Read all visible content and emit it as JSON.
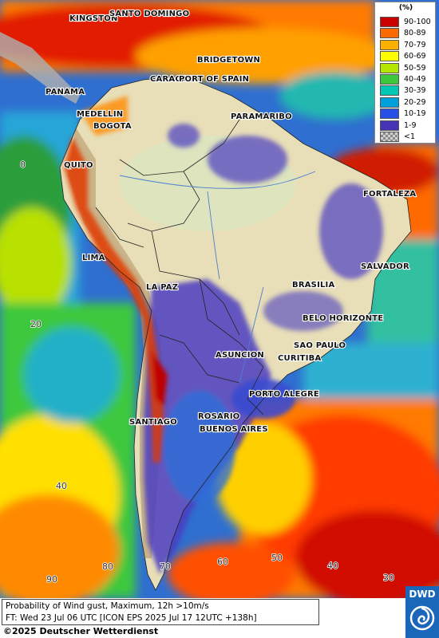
{
  "map": {
    "cities": [
      "KINGSTON",
      "SANTO DOMINGO",
      "BRIDGETOWN",
      "CARACAS",
      "PORT OF SPAIN",
      "PANAMA",
      "MEDELLIN",
      "BOGOTA",
      "PARAMARIBO",
      "QUITO",
      "FORTALEZA",
      "LIMA",
      "SALVADOR",
      "LA PAZ",
      "BRASILIA",
      "BELO HORIZONTE",
      "SAO PAULO",
      "ASUNCION",
      "CURITIBA",
      "PORTO ALEGRE",
      "ROSARIO",
      "BUENOS AIRES",
      "SANTIAGO"
    ],
    "grid_labels": [
      "0",
      "20",
      "40",
      "90",
      "80",
      "70",
      "60",
      "50",
      "40",
      "30"
    ]
  },
  "legend": {
    "unit": "(%)",
    "classes": [
      {
        "label": "90-100",
        "color": "#c80000"
      },
      {
        "label": "80-89",
        "color": "#ff6a00"
      },
      {
        "label": "70-79",
        "color": "#ffb000"
      },
      {
        "label": "60-69",
        "color": "#ffff00"
      },
      {
        "label": "50-59",
        "color": "#b4e600"
      },
      {
        "label": "40-49",
        "color": "#3cc83c"
      },
      {
        "label": "30-39",
        "color": "#00c8b4"
      },
      {
        "label": "20-29",
        "color": "#00a0dc"
      },
      {
        "label": "10-19",
        "color": "#2850e6"
      },
      {
        "label": "1-9",
        "color": "#4632b4"
      },
      {
        "label": "<1",
        "color": "checker"
      }
    ]
  },
  "caption": {
    "line1": "Probability of Wind gust, Maximum, 12h >10m/s",
    "line2": "FT: Wed 23 Jul 06 UTC [ICON EPS 2025 Jul 17 12UTC +138h]"
  },
  "copyright": "©2025 Deutscher Wetterdienst",
  "logo": {
    "text": "DWD"
  }
}
